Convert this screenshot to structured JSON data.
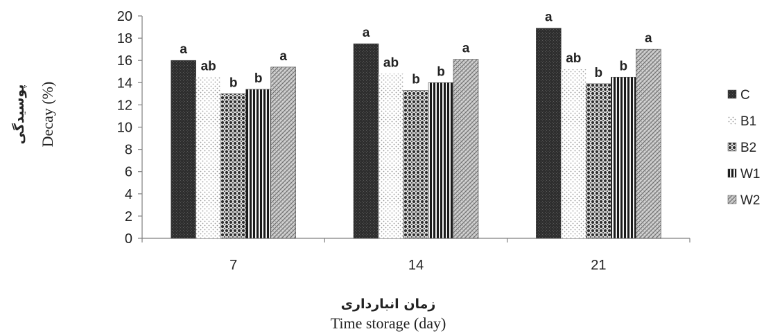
{
  "chart_data": {
    "type": "bar",
    "categories": [
      "7",
      "14",
      "21"
    ],
    "series": [
      {
        "name": "C",
        "values": [
          16.0,
          17.5,
          18.9
        ],
        "letters": [
          "a",
          "a",
          "a"
        ]
      },
      {
        "name": "B1",
        "values": [
          14.5,
          14.8,
          15.2
        ],
        "letters": [
          "ab",
          "ab",
          "ab"
        ]
      },
      {
        "name": "B2",
        "values": [
          13.0,
          13.3,
          13.9
        ],
        "letters": [
          "b",
          "b",
          "b"
        ]
      },
      {
        "name": "W1",
        "values": [
          13.4,
          14.0,
          14.5
        ],
        "letters": [
          "b",
          "b",
          "b"
        ]
      },
      {
        "name": "W2",
        "values": [
          15.4,
          16.1,
          17.0
        ],
        "letters": [
          "a",
          "a",
          "a"
        ]
      }
    ],
    "yticks": [
      0,
      2,
      4,
      6,
      8,
      10,
      12,
      14,
      16,
      18,
      20
    ],
    "ylim": [
      0,
      20
    ],
    "xlabel_fa": "زمان انبارداری",
    "xlabel": "Time storage (day)",
    "ylabel_fa": "پوسیدگی",
    "ylabel": "Decay (%)",
    "legend_position": "right",
    "grid": false,
    "colors": {
      "C": "#2b2b2b",
      "B1": "#e4e4e4",
      "B2": "#6a6a6a",
      "W1": "#1e1e1e",
      "W2": "#b0b0b0",
      "axis": "#7f7f7f"
    }
  }
}
